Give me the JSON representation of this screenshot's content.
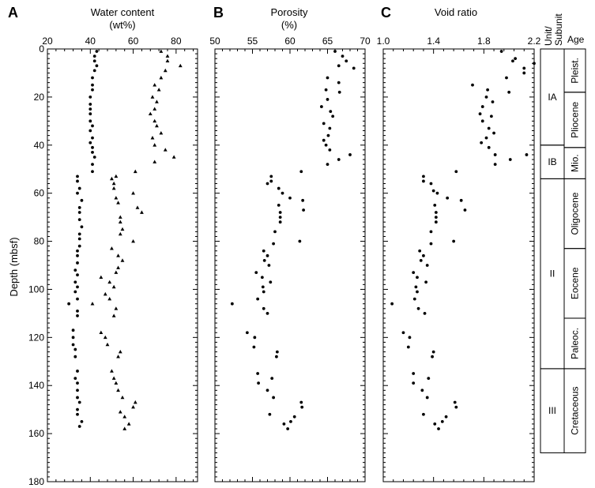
{
  "depth_axis": {
    "label": "Depth (mbsf)",
    "range": [
      0,
      180
    ],
    "major_ticks": [
      0,
      20,
      40,
      60,
      80,
      100,
      120,
      140,
      160,
      180
    ],
    "minor_step": 2
  },
  "chart_data": [
    {
      "type": "scatter",
      "panel_letter": "A",
      "title": "Water content",
      "unit": "(wt%)",
      "xlim": [
        20,
        90
      ],
      "x_ticks": [
        20,
        40,
        60,
        80
      ],
      "ylim": [
        180,
        0
      ],
      "series": [
        {
          "marker": "circle",
          "points": [
            [
              43,
              1
            ],
            [
              42,
              3
            ],
            [
              42,
              5
            ],
            [
              43,
              7
            ],
            [
              42,
              9
            ],
            [
              41,
              12
            ],
            [
              41,
              15
            ],
            [
              41,
              17
            ],
            [
              40,
              20
            ],
            [
              40,
              23
            ],
            [
              40,
              25
            ],
            [
              40,
              27
            ],
            [
              40,
              30
            ],
            [
              41,
              32
            ],
            [
              40,
              34
            ],
            [
              41,
              37
            ],
            [
              40,
              39
            ],
            [
              41,
              41
            ],
            [
              41,
              43
            ],
            [
              42,
              45
            ],
            [
              41,
              48
            ],
            [
              41,
              51
            ],
            [
              34,
              53
            ],
            [
              34,
              55
            ],
            [
              35,
              58
            ],
            [
              34,
              60
            ],
            [
              36,
              63
            ],
            [
              35,
              66
            ],
            [
              35,
              68
            ],
            [
              35,
              71
            ],
            [
              36,
              74
            ],
            [
              35,
              77
            ],
            [
              35,
              79
            ],
            [
              35,
              82
            ],
            [
              34,
              84
            ],
            [
              34,
              86
            ],
            [
              34,
              89
            ],
            [
              33,
              92
            ],
            [
              34,
              94
            ],
            [
              33,
              97
            ],
            [
              34,
              99
            ],
            [
              33,
              101
            ],
            [
              34,
              104
            ],
            [
              30,
              106
            ],
            [
              34,
              109
            ],
            [
              34,
              111
            ],
            [
              32,
              117
            ],
            [
              32,
              120
            ],
            [
              32,
              123
            ],
            [
              33,
              125
            ],
            [
              33,
              128
            ],
            [
              34,
              134
            ],
            [
              33,
              137
            ],
            [
              34,
              139
            ],
            [
              34,
              142
            ],
            [
              34,
              145
            ],
            [
              35,
              147
            ],
            [
              34,
              150
            ],
            [
              34,
              152
            ],
            [
              36,
              155
            ],
            [
              35,
              157
            ]
          ]
        },
        {
          "marker": "triangle",
          "points": [
            [
              73,
              1
            ],
            [
              76,
              3
            ],
            [
              76,
              5
            ],
            [
              82,
              7
            ],
            [
              75,
              9
            ],
            [
              73,
              12
            ],
            [
              70,
              15
            ],
            [
              72,
              17
            ],
            [
              69,
              20
            ],
            [
              71,
              22
            ],
            [
              70,
              25
            ],
            [
              68,
              27
            ],
            [
              70,
              30
            ],
            [
              71,
              32
            ],
            [
              73,
              35
            ],
            [
              69,
              37
            ],
            [
              70,
              40
            ],
            [
              75,
              42
            ],
            [
              79,
              45
            ],
            [
              70,
              47
            ],
            [
              61,
              51
            ],
            [
              52,
              53
            ],
            [
              50,
              54
            ],
            [
              51,
              56
            ],
            [
              51,
              58
            ],
            [
              60,
              60
            ],
            [
              52,
              62
            ],
            [
              53,
              64
            ],
            [
              62,
              66
            ],
            [
              64,
              68
            ],
            [
              54,
              70
            ],
            [
              54,
              72
            ],
            [
              55,
              75
            ],
            [
              54,
              77
            ],
            [
              60,
              80
            ],
            [
              50,
              83
            ],
            [
              53,
              86
            ],
            [
              55,
              88
            ],
            [
              53,
              91
            ],
            [
              52,
              93
            ],
            [
              45,
              95
            ],
            [
              49,
              97
            ],
            [
              51,
              99
            ],
            [
              47,
              102
            ],
            [
              49,
              104
            ],
            [
              41,
              106
            ],
            [
              52,
              108
            ],
            [
              51,
              111
            ],
            [
              45,
              118
            ],
            [
              47,
              120
            ],
            [
              48,
              123
            ],
            [
              54,
              126
            ],
            [
              53,
              128
            ],
            [
              50,
              134
            ],
            [
              51,
              137
            ],
            [
              52,
              139
            ],
            [
              53,
              142
            ],
            [
              55,
              145
            ],
            [
              61,
              147
            ],
            [
              60,
              149
            ],
            [
              54,
              151
            ],
            [
              56,
              153
            ],
            [
              58,
              156
            ],
            [
              56,
              158
            ]
          ]
        }
      ]
    },
    {
      "type": "scatter",
      "panel_letter": "B",
      "title": "Porosity",
      "unit": "(%)",
      "xlim": [
        50,
        70
      ],
      "x_ticks": [
        50,
        55,
        60,
        65,
        70
      ],
      "ylim": [
        180,
        0
      ],
      "series": [
        {
          "marker": "circle",
          "points": [
            [
              66,
              1
            ],
            [
              67,
              3
            ],
            [
              67.5,
              5
            ],
            [
              66.5,
              7
            ],
            [
              68.5,
              8
            ],
            [
              65,
              12
            ],
            [
              66.5,
              14
            ],
            [
              64.8,
              17
            ],
            [
              66.6,
              18
            ],
            [
              65,
              21
            ],
            [
              64.2,
              24
            ],
            [
              65.4,
              26
            ],
            [
              65.7,
              28
            ],
            [
              64.5,
              31
            ],
            [
              65.3,
              33
            ],
            [
              65.1,
              36
            ],
            [
              64.5,
              38
            ],
            [
              64.8,
              40
            ],
            [
              65.3,
              42
            ],
            [
              68,
              44
            ],
            [
              66.5,
              46
            ],
            [
              65,
              48
            ],
            [
              61.5,
              51
            ],
            [
              57.5,
              53
            ],
            [
              57.5,
              55
            ],
            [
              57,
              56
            ],
            [
              58.5,
              58
            ],
            [
              59,
              60
            ],
            [
              60,
              62
            ],
            [
              61.7,
              63
            ],
            [
              58.5,
              65
            ],
            [
              61.8,
              67
            ],
            [
              58.7,
              68
            ],
            [
              58.7,
              70
            ],
            [
              58.7,
              72
            ],
            [
              58,
              76
            ],
            [
              61.3,
              80
            ],
            [
              57.8,
              81
            ],
            [
              56.5,
              84
            ],
            [
              57,
              86
            ],
            [
              56.6,
              88
            ],
            [
              57.2,
              90
            ],
            [
              55.5,
              93
            ],
            [
              56.3,
              95
            ],
            [
              57.4,
              97
            ],
            [
              56.4,
              99
            ],
            [
              56.5,
              101
            ],
            [
              55.7,
              104
            ],
            [
              52.3,
              106
            ],
            [
              56.5,
              108
            ],
            [
              57,
              110
            ],
            [
              54.3,
              118
            ],
            [
              55.3,
              120
            ],
            [
              55.2,
              124
            ],
            [
              58.3,
              126
            ],
            [
              58.2,
              128
            ],
            [
              55.7,
              135
            ],
            [
              57.6,
              137
            ],
            [
              55.8,
              139
            ],
            [
              57,
              142
            ],
            [
              57.8,
              145
            ],
            [
              61.5,
              147
            ],
            [
              61.6,
              149
            ],
            [
              57.3,
              152
            ],
            [
              60.6,
              153
            ],
            [
              60.1,
              155
            ],
            [
              59.2,
              156
            ],
            [
              59.7,
              158
            ]
          ]
        }
      ]
    },
    {
      "type": "scatter",
      "panel_letter": "C",
      "title": "Void ratio",
      "unit": "",
      "xlim": [
        1.0,
        2.2
      ],
      "x_ticks": [
        "1.0",
        "1.4",
        "1.8",
        "2.2"
      ],
      "ylim": [
        180,
        0
      ],
      "series": [
        {
          "marker": "circle",
          "points": [
            [
              1.94,
              1
            ],
            [
              2.05,
              4
            ],
            [
              2.03,
              5
            ],
            [
              2.2,
              6
            ],
            [
              2.12,
              8
            ],
            [
              2.12,
              10
            ],
            [
              1.98,
              12
            ],
            [
              1.71,
              15
            ],
            [
              1.83,
              17
            ],
            [
              2.0,
              18
            ],
            [
              1.82,
              20
            ],
            [
              1.87,
              22
            ],
            [
              1.79,
              24
            ],
            [
              1.77,
              27
            ],
            [
              1.86,
              28
            ],
            [
              1.79,
              30
            ],
            [
              1.84,
              33
            ],
            [
              1.88,
              35
            ],
            [
              1.82,
              37
            ],
            [
              1.78,
              39
            ],
            [
              1.84,
              41
            ],
            [
              1.89,
              44
            ],
            [
              2.14,
              44
            ],
            [
              2.01,
              46
            ],
            [
              1.89,
              48
            ],
            [
              1.58,
              51
            ],
            [
              1.32,
              53
            ],
            [
              1.32,
              55
            ],
            [
              1.38,
              56
            ],
            [
              1.4,
              59
            ],
            [
              1.43,
              60
            ],
            [
              1.51,
              62
            ],
            [
              1.62,
              63
            ],
            [
              1.41,
              65
            ],
            [
              1.65,
              67
            ],
            [
              1.42,
              68
            ],
            [
              1.42,
              70
            ],
            [
              1.42,
              72
            ],
            [
              1.38,
              76
            ],
            [
              1.56,
              80
            ],
            [
              1.38,
              81
            ],
            [
              1.29,
              84
            ],
            [
              1.32,
              86
            ],
            [
              1.3,
              88
            ],
            [
              1.35,
              90
            ],
            [
              1.24,
              93
            ],
            [
              1.27,
              95
            ],
            [
              1.34,
              97
            ],
            [
              1.26,
              99
            ],
            [
              1.27,
              101
            ],
            [
              1.25,
              104
            ],
            [
              1.07,
              106
            ],
            [
              1.28,
              108
            ],
            [
              1.33,
              110
            ],
            [
              1.16,
              118
            ],
            [
              1.21,
              120
            ],
            [
              1.2,
              124
            ],
            [
              1.4,
              126
            ],
            [
              1.39,
              128
            ],
            [
              1.24,
              135
            ],
            [
              1.36,
              137
            ],
            [
              1.24,
              139
            ],
            [
              1.31,
              142
            ],
            [
              1.35,
              145
            ],
            [
              1.57,
              147
            ],
            [
              1.58,
              149
            ],
            [
              1.32,
              152
            ],
            [
              1.5,
              153
            ],
            [
              1.47,
              155
            ],
            [
              1.41,
              156
            ],
            [
              1.44,
              158
            ]
          ]
        }
      ]
    }
  ],
  "stratigraphy": {
    "unit_header": "Unit/\nSubunit",
    "age_header": "Age",
    "units": [
      {
        "label": "IA",
        "top": 0,
        "bottom": 40
      },
      {
        "label": "IB",
        "top": 40,
        "bottom": 54
      },
      {
        "label": "II",
        "top": 54,
        "bottom": 133
      },
      {
        "label": "III",
        "top": 133,
        "bottom": 168
      }
    ],
    "ages": [
      {
        "label": "Pleist.",
        "top": 0,
        "bottom": 18
      },
      {
        "label": "Pliocene",
        "top": 18,
        "bottom": 41
      },
      {
        "label": "Mio.",
        "top": 41,
        "bottom": 54
      },
      {
        "label": "Oligocene",
        "top": 54,
        "bottom": 83
      },
      {
        "label": "Eocene",
        "top": 83,
        "bottom": 112
      },
      {
        "label": "Paleoc.",
        "top": 112,
        "bottom": 133
      },
      {
        "label": "Cretaceous",
        "top": 133,
        "bottom": 168
      }
    ]
  }
}
